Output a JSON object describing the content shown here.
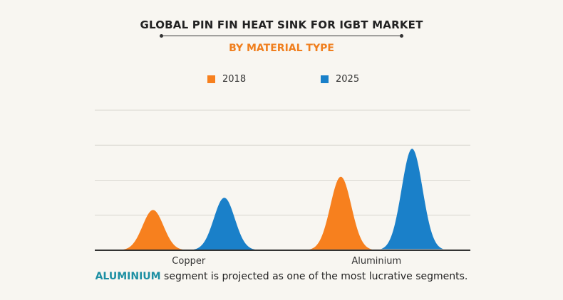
{
  "header": {
    "title": "GLOBAL PIN FIN HEAT SINK FOR IGBT MARKET",
    "subtitle": "BY MATERIAL TYPE"
  },
  "footnote": {
    "highlight": "ALUMINIUM",
    "text": " segment is projected as one of the most lucrative segments."
  },
  "colors": {
    "series_2018": "#f7801e",
    "series_2025": "#1a80c9",
    "accent_text": "#1c8fa3",
    "subtitle": "#f07f1e",
    "grid": "#d8d6d0",
    "axis": "#333333"
  },
  "chart_data": {
    "type": "area",
    "categories": [
      "Copper",
      "Aluminium"
    ],
    "series": [
      {
        "name": "2018",
        "values": [
          1.15,
          2.1
        ]
      },
      {
        "name": "2025",
        "values": [
          1.5,
          2.9
        ]
      }
    ],
    "ylim": [
      0,
      4
    ],
    "grid": true,
    "legend": "top-center",
    "xlabel": "",
    "ylabel": ""
  }
}
